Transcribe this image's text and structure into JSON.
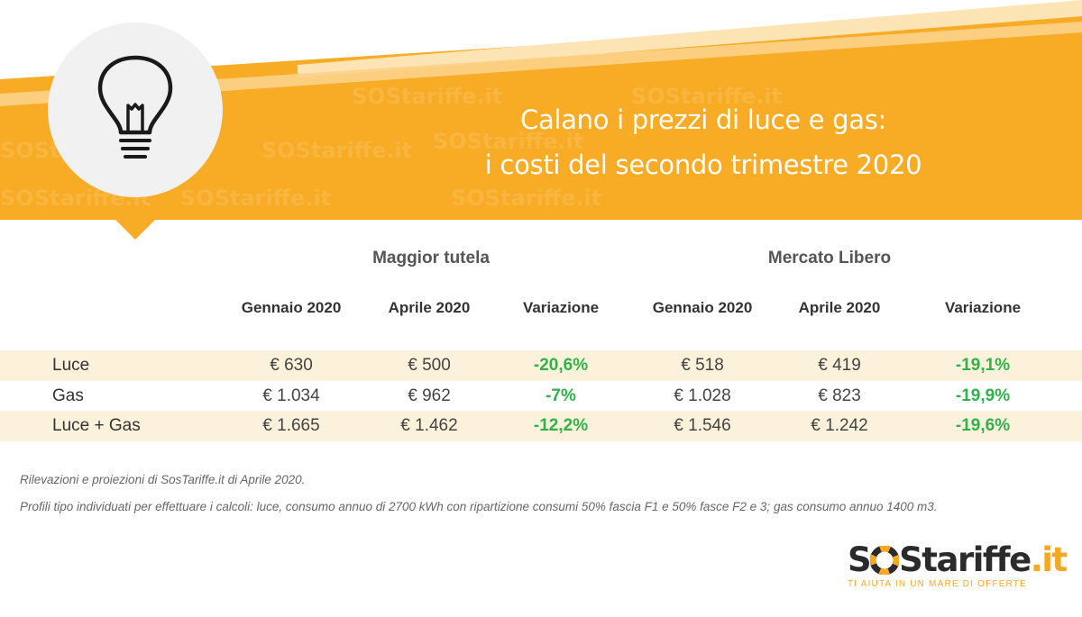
{
  "header": {
    "title_line1": "Calano i prezzi di luce e gas:",
    "title_line2": "i costi del secondo trimestre 2020",
    "icon": "lightbulb-icon",
    "watermark": "SOStariffe.it"
  },
  "table": {
    "groups": [
      "Maggior tutela",
      "Mercato Libero"
    ],
    "columns": [
      "Gennaio 2020",
      "Aprile 2020",
      "Variazione",
      "Gennaio 2020",
      "Aprile 2020",
      "Variazione"
    ],
    "rows": [
      {
        "label": "Luce",
        "cells": [
          "€ 630",
          "€ 500",
          "-20,6%",
          "€ 518",
          "€ 419",
          "-19,1%"
        ]
      },
      {
        "label": "Gas",
        "cells": [
          "€ 1.034",
          "€ 962",
          "-7%",
          "€ 1.028",
          "€ 823",
          "-19,9%"
        ]
      },
      {
        "label": "Luce + Gas",
        "cells": [
          "€ 1.665",
          "€ 1.462",
          "-12,2%",
          "€ 1.546",
          "€ 1.242",
          "-19,6%"
        ]
      }
    ]
  },
  "notes": [
    "Rilevazioni e proiezioni di SosTariffe.it di Aprile 2020.",
    "Profili tipo individuati per effettuare i calcoli: luce, consumo annuo di 2700 kWh con ripartizione consumi 50% fascia F1 e 50% fasce F2 e 3; gas consumo annuo 1400 m3."
  ],
  "logo": {
    "part1": "S",
    "part2": "Stariffe",
    "part3": ".it",
    "tagline": "TI AIUTA IN UN MARE DI OFFERTE"
  },
  "colors": {
    "accent": "#f7a823",
    "band": "#fcf1da",
    "positive": "#2fb24a"
  }
}
